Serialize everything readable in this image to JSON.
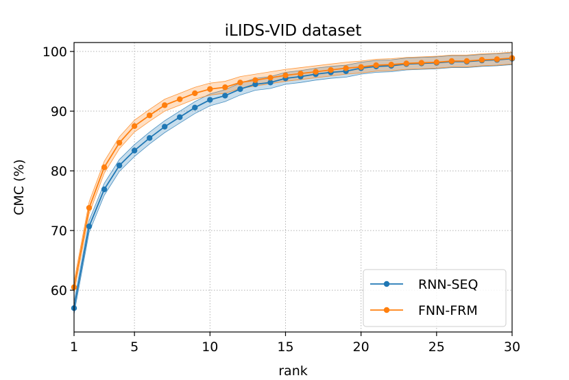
{
  "chart_data": {
    "type": "line",
    "title": "iLIDS-VID dataset",
    "xlabel": "rank",
    "ylabel": "CMC (%)",
    "xlim": [
      1,
      30
    ],
    "ylim": [
      53,
      101.5
    ],
    "grid": true,
    "legend_position": "bottom-right",
    "x_ticks": [
      1,
      5,
      10,
      15,
      20,
      25,
      30
    ],
    "x_tick_labels": [
      "1",
      "5",
      "10",
      "15",
      "20",
      "25",
      "30"
    ],
    "y_ticks": [
      60,
      70,
      80,
      90,
      100
    ],
    "y_tick_labels": [
      "60",
      "70",
      "80",
      "90",
      "100"
    ],
    "series": [
      {
        "name": "RNN-SEQ",
        "color": "#1f77b4",
        "x": [
          1,
          2,
          3,
          4,
          5,
          6,
          7,
          8,
          9,
          10,
          11,
          12,
          13,
          14,
          15,
          16,
          17,
          18,
          19,
          20,
          21,
          22,
          23,
          24,
          25,
          26,
          27,
          28,
          29,
          30
        ],
        "values": [
          57.0,
          70.7,
          76.9,
          80.9,
          83.4,
          85.5,
          87.4,
          89.0,
          90.6,
          91.9,
          92.6,
          93.7,
          94.5,
          94.8,
          95.5,
          95.8,
          96.2,
          96.5,
          96.7,
          97.2,
          97.5,
          97.6,
          97.9,
          98.0,
          98.1,
          98.3,
          98.3,
          98.5,
          98.6,
          98.8
        ],
        "band": 1.0
      },
      {
        "name": "FNN-FRM",
        "color": "#ff7f0e",
        "x": [
          1,
          2,
          3,
          4,
          5,
          6,
          7,
          8,
          9,
          10,
          11,
          12,
          13,
          14,
          15,
          16,
          17,
          18,
          19,
          20,
          21,
          22,
          23,
          24,
          25,
          26,
          27,
          28,
          29,
          30
        ],
        "values": [
          60.5,
          73.8,
          80.6,
          84.7,
          87.5,
          89.3,
          91.0,
          92.0,
          93.0,
          93.7,
          94.0,
          94.8,
          95.2,
          95.6,
          96.0,
          96.3,
          96.6,
          96.9,
          97.2,
          97.4,
          97.7,
          97.8,
          98.0,
          98.1,
          98.2,
          98.4,
          98.4,
          98.6,
          98.7,
          98.9
        ],
        "band": 1.0
      }
    ]
  }
}
